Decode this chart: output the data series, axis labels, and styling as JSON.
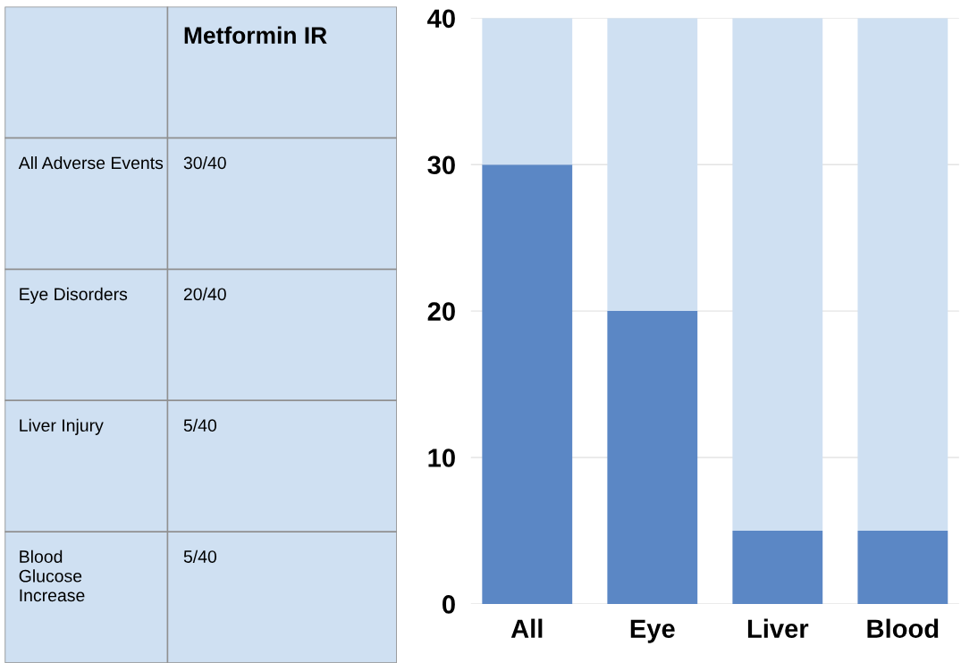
{
  "chart_data": [
    {
      "type": "other",
      "title": "Metformin IR",
      "annotations": [
        "All Adverse Events",
        "30/40",
        "Eye Disorders",
        "20/40",
        "Liver Injury",
        "5/40",
        "Blood\nGlucose\nIncrease",
        "5/40"
      ]
    },
    {
      "type": "bar",
      "stacked": true,
      "categories": [
        "All",
        "Eye",
        "Liver",
        "Blood"
      ],
      "series": [
        {
          "color": "#5b87c5",
          "values": [
            30,
            20,
            5,
            5
          ]
        },
        {
          "color": "#cfe0f2",
          "values": [
            10,
            20,
            35,
            35
          ]
        }
      ],
      "ylim": [
        0,
        40
      ],
      "yticks": [
        0,
        10,
        20,
        30,
        40
      ],
      "grid": "y"
    }
  ]
}
